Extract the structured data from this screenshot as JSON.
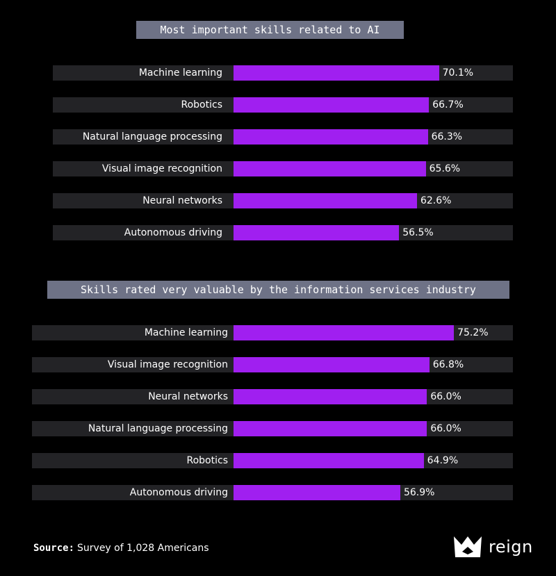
{
  "chart_data": [
    {
      "type": "bar",
      "orientation": "horizontal",
      "title": "Most important skills related to AI",
      "categories": [
        "Machine learning",
        "Robotics",
        "Natural language processing",
        "Visual image recognition",
        "Neural networks",
        "Autonomous driving"
      ],
      "values": [
        70.1,
        66.7,
        66.3,
        65.6,
        62.6,
        56.5
      ],
      "value_labels": [
        "70.1%",
        "66.7%",
        "66.3%",
        "65.6%",
        "62.6%",
        "56.5%"
      ],
      "xlabel": "",
      "ylabel": "",
      "xlim": [
        0,
        100
      ]
    },
    {
      "type": "bar",
      "orientation": "horizontal",
      "title": "Skills rated very valuable by the information services industry",
      "categories": [
        "Machine learning",
        "Visual image recognition",
        "Neural networks",
        "Natural language processing",
        "Robotics",
        "Autonomous driving"
      ],
      "values": [
        75.2,
        66.8,
        66.0,
        66.0,
        64.9,
        56.9
      ],
      "value_labels": [
        "75.2%",
        "66.8%",
        "66.0%",
        "66.0%",
        "64.9%",
        "56.9%"
      ],
      "xlabel": "",
      "ylabel": "",
      "xlim": [
        0,
        100
      ]
    }
  ],
  "colors": {
    "background": "#000000",
    "bar": "#a01ff0",
    "track": "#232326",
    "title_bg": "#6e7286",
    "text": "#ffffff"
  },
  "footer": {
    "source_label": "Source:",
    "source_text": "Survey of 1,028 Americans"
  },
  "logo": {
    "icon": "crown-icon",
    "wordmark": "reign"
  }
}
